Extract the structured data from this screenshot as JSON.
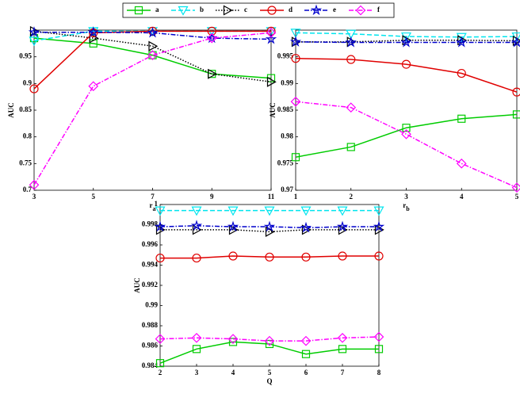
{
  "legend": [
    {
      "name": "a",
      "color": "#00cc00",
      "marker": "square",
      "dash": "solid"
    },
    {
      "name": "b",
      "color": "#00e5ee",
      "marker": "triangle-down",
      "dash": "dashed"
    },
    {
      "name": "c",
      "color": "#000000",
      "marker": "triangle-right",
      "dash": "dotted"
    },
    {
      "name": "d",
      "color": "#e00000",
      "marker": "circle",
      "dash": "solid"
    },
    {
      "name": "e",
      "color": "#0000cc",
      "marker": "star",
      "dash": "dashdot"
    },
    {
      "name": "f",
      "color": "#ff00ff",
      "marker": "diamond",
      "dash": "dashdot"
    }
  ],
  "chart_data": [
    {
      "type": "line",
      "ylabel": "AUC",
      "xlabel": "r",
      "xlabel_subscript": "a",
      "x": [
        3,
        5,
        7,
        9,
        11
      ],
      "xlim": [
        3,
        11
      ],
      "xticks": [
        3,
        5,
        7,
        9,
        11
      ],
      "ylim": [
        0.7,
        1.0
      ],
      "yticks": [
        0.7,
        0.75,
        0.8,
        0.85,
        0.9,
        0.95
      ],
      "series": [
        {
          "values": [
            0.985,
            0.975,
            0.953,
            0.918,
            0.91
          ]
        },
        {
          "values": [
            0.98,
            0.998,
            0.998,
            0.998,
            0.998
          ]
        },
        {
          "values": [
            0.998,
            0.985,
            0.97,
            0.918,
            0.903
          ]
        },
        {
          "values": [
            0.89,
            0.995,
            0.998,
            0.998,
            0.998
          ]
        },
        {
          "values": [
            0.996,
            0.996,
            0.995,
            0.985,
            0.983
          ]
        },
        {
          "values": [
            0.71,
            0.895,
            0.953,
            0.985,
            0.995
          ]
        }
      ]
    },
    {
      "type": "line",
      "ylabel": "AUC",
      "xlabel": "r",
      "xlabel_subscript": "b",
      "x": [
        1,
        2,
        3,
        4,
        5
      ],
      "xlim": [
        1,
        5
      ],
      "xticks": [
        1,
        2,
        3,
        4,
        5
      ],
      "ylim": [
        0.97,
        1.0
      ],
      "yticks": [
        0.97,
        0.975,
        0.98,
        0.985,
        0.99,
        0.995
      ],
      "series": [
        {
          "values": [
            0.9762,
            0.9781,
            0.9817,
            0.9834,
            0.9842
          ]
        },
        {
          "values": [
            0.9995,
            0.9993,
            0.9988,
            0.9987,
            0.9988
          ]
        },
        {
          "values": [
            0.9978,
            0.9978,
            0.9981,
            0.9981,
            0.998
          ]
        },
        {
          "values": [
            0.9947,
            0.9945,
            0.9936,
            0.9919,
            0.9884
          ]
        },
        {
          "values": [
            0.9978,
            0.9977,
            0.9977,
            0.9977,
            0.9977
          ]
        },
        {
          "values": [
            0.9866,
            0.9855,
            0.9805,
            0.975,
            0.9705
          ]
        }
      ]
    },
    {
      "type": "line",
      "ylabel": "AUC",
      "xlabel": "Q",
      "x": [
        2,
        3,
        4,
        5,
        6,
        7,
        8
      ],
      "xlim": [
        2,
        8
      ],
      "xticks": [
        2,
        3,
        4,
        5,
        6,
        7,
        8
      ],
      "ylim": [
        0.984,
        1.0
      ],
      "yticks": [
        0.984,
        0.986,
        0.988,
        0.99,
        0.992,
        0.994,
        0.996,
        0.998,
        1
      ],
      "series": [
        {
          "values": [
            0.9843,
            0.9857,
            0.9864,
            0.9862,
            0.9852,
            0.9857,
            0.9857
          ]
        },
        {
          "values": [
            0.9994,
            0.9994,
            0.9994,
            0.9994,
            0.9994,
            0.9994,
            0.9994
          ]
        },
        {
          "values": [
            0.9975,
            0.9975,
            0.9975,
            0.9973,
            0.9975,
            0.9975,
            0.9975
          ]
        },
        {
          "values": [
            0.9947,
            0.9947,
            0.9949,
            0.9948,
            0.9948,
            0.9949,
            0.9949
          ]
        },
        {
          "values": [
            0.9978,
            0.9979,
            0.9978,
            0.9978,
            0.9977,
            0.9978,
            0.9978
          ]
        },
        {
          "values": [
            0.9867,
            0.9868,
            0.9867,
            0.9865,
            0.9865,
            0.9868,
            0.9869
          ]
        }
      ]
    }
  ]
}
